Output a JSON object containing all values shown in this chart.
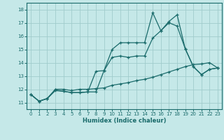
{
  "xlabel": "Humidex (Indice chaleur)",
  "xlim": [
    -0.5,
    23.5
  ],
  "ylim": [
    10.5,
    18.5
  ],
  "yticks": [
    11,
    12,
    13,
    14,
    15,
    16,
    17,
    18
  ],
  "xticks": [
    0,
    1,
    2,
    3,
    4,
    5,
    6,
    7,
    8,
    9,
    10,
    11,
    12,
    13,
    14,
    15,
    16,
    17,
    18,
    19,
    20,
    21,
    22,
    23
  ],
  "bg_color": "#c5e8e8",
  "grid_color": "#a0cccc",
  "line_color": "#1a6b6b",
  "line1_y": [
    11.6,
    11.1,
    11.3,
    11.9,
    11.85,
    11.75,
    11.75,
    11.8,
    11.8,
    13.4,
    15.0,
    15.5,
    15.5,
    15.5,
    15.5,
    17.75,
    16.4,
    17.0,
    16.75,
    15.05,
    13.7,
    13.1,
    13.5,
    13.6
  ],
  "line2_y": [
    11.6,
    11.1,
    11.3,
    11.95,
    11.85,
    11.75,
    11.75,
    11.8,
    13.35,
    13.4,
    14.4,
    14.5,
    14.4,
    14.5,
    14.5,
    15.85,
    16.4,
    17.1,
    17.6,
    15.05,
    13.7,
    13.1,
    13.5,
    13.6
  ],
  "line3_y": [
    11.6,
    11.1,
    11.3,
    12.0,
    12.0,
    11.9,
    12.0,
    12.0,
    12.05,
    12.1,
    12.3,
    12.4,
    12.5,
    12.65,
    12.75,
    12.9,
    13.1,
    13.3,
    13.5,
    13.7,
    13.85,
    13.9,
    14.0,
    13.6
  ]
}
